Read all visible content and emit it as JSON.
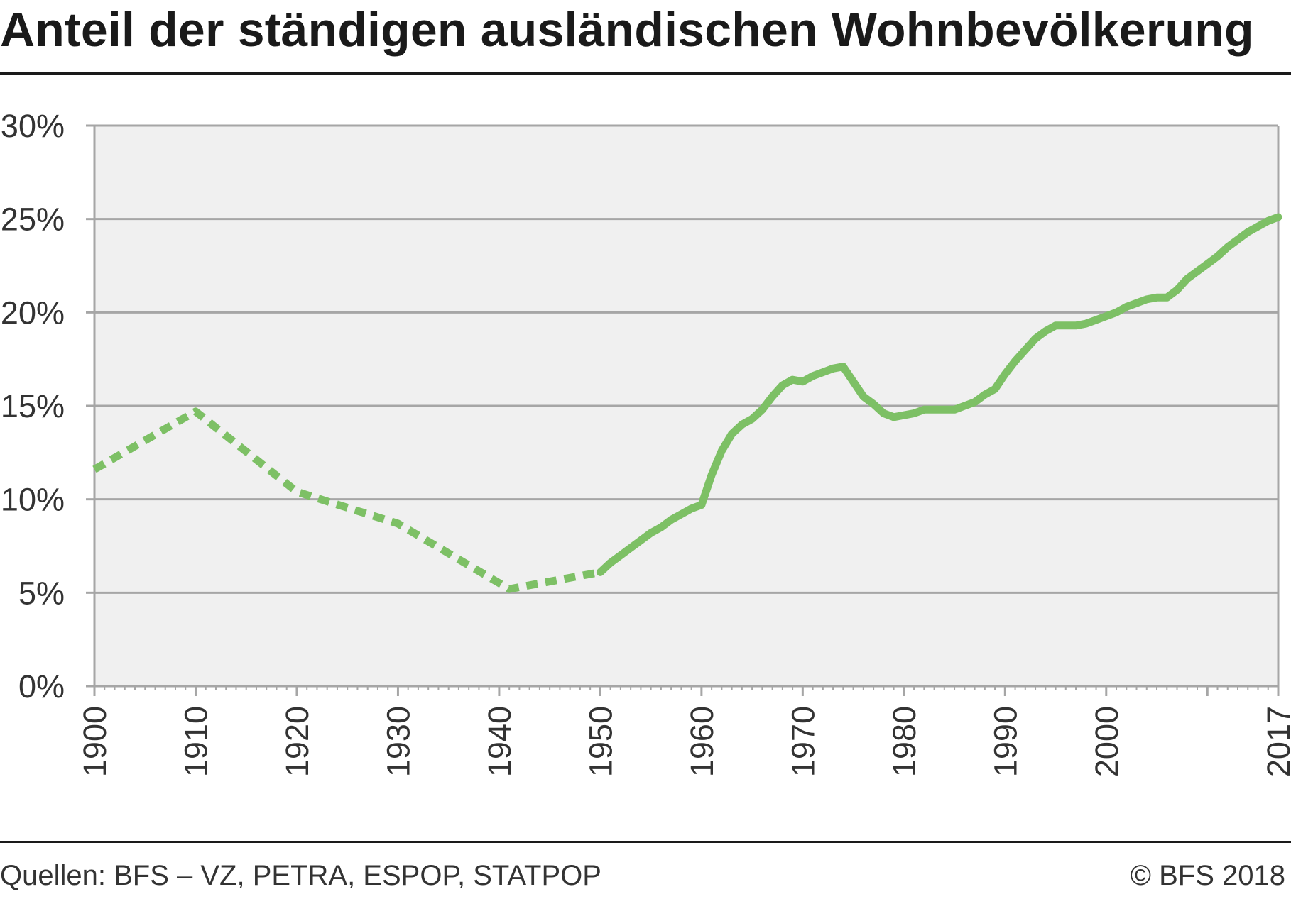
{
  "title": "Anteil der ständigen ausländischen Wohnbevölkerung",
  "footer": {
    "sources": "Quellen: BFS – VZ, PETRA, ESPOP, STATPOP",
    "copyright": "© BFS 2018"
  },
  "colors": {
    "line": "#7dc065",
    "plot_background": "#f0f0f0",
    "grid": "#a6a6a6",
    "text": "#333333"
  },
  "chart_data": {
    "type": "line",
    "title": "Anteil der ständigen ausländischen Wohnbevölkerung",
    "xlabel": "",
    "ylabel": "",
    "xlim": [
      1900,
      2017
    ],
    "ylim": [
      0,
      30
    ],
    "y_unit": "%",
    "grid": true,
    "legend": "none",
    "x_ticks": [
      1900,
      1910,
      1920,
      1930,
      1940,
      1950,
      1960,
      1970,
      1980,
      1990,
      2000,
      2017
    ],
    "y_ticks": [
      0,
      5,
      10,
      15,
      20,
      25,
      30
    ],
    "series": [
      {
        "style": "dotted",
        "x": [
          1900,
          1910,
          1920,
          1930,
          1941,
          1950
        ],
        "y": [
          11.6,
          14.7,
          10.4,
          8.7,
          5.2,
          6.1
        ]
      },
      {
        "style": "solid",
        "x": [
          1950,
          1951,
          1952,
          1953,
          1954,
          1955,
          1956,
          1957,
          1958,
          1959,
          1960,
          1961,
          1962,
          1963,
          1964,
          1965,
          1966,
          1967,
          1968,
          1969,
          1970,
          1971,
          1972,
          1973,
          1974,
          1975,
          1976,
          1977,
          1978,
          1979,
          1980,
          1981,
          1982,
          1983,
          1984,
          1985,
          1986,
          1987,
          1988,
          1989,
          1990,
          1991,
          1992,
          1993,
          1994,
          1995,
          1996,
          1997,
          1998,
          1999,
          2000,
          2001,
          2002,
          2003,
          2004,
          2005,
          2006,
          2007,
          2008,
          2009,
          2010,
          2011,
          2012,
          2013,
          2014,
          2015,
          2016,
          2017
        ],
        "y": [
          6.1,
          6.6,
          7.0,
          7.4,
          7.8,
          8.2,
          8.5,
          8.9,
          9.2,
          9.5,
          9.7,
          11.3,
          12.6,
          13.5,
          14.0,
          14.3,
          14.8,
          15.5,
          16.1,
          16.4,
          16.3,
          16.6,
          16.8,
          17.0,
          17.1,
          16.3,
          15.5,
          15.1,
          14.6,
          14.4,
          14.5,
          14.6,
          14.8,
          14.8,
          14.8,
          14.8,
          15.0,
          15.2,
          15.6,
          15.9,
          16.7,
          17.4,
          18.0,
          18.6,
          19.0,
          19.3,
          19.3,
          19.3,
          19.4,
          19.6,
          19.8,
          20.0,
          20.3,
          20.5,
          20.7,
          20.8,
          20.8,
          21.2,
          21.8,
          22.2,
          22.6,
          23.0,
          23.5,
          23.9,
          24.3,
          24.6,
          24.9,
          25.1
        ]
      }
    ]
  }
}
